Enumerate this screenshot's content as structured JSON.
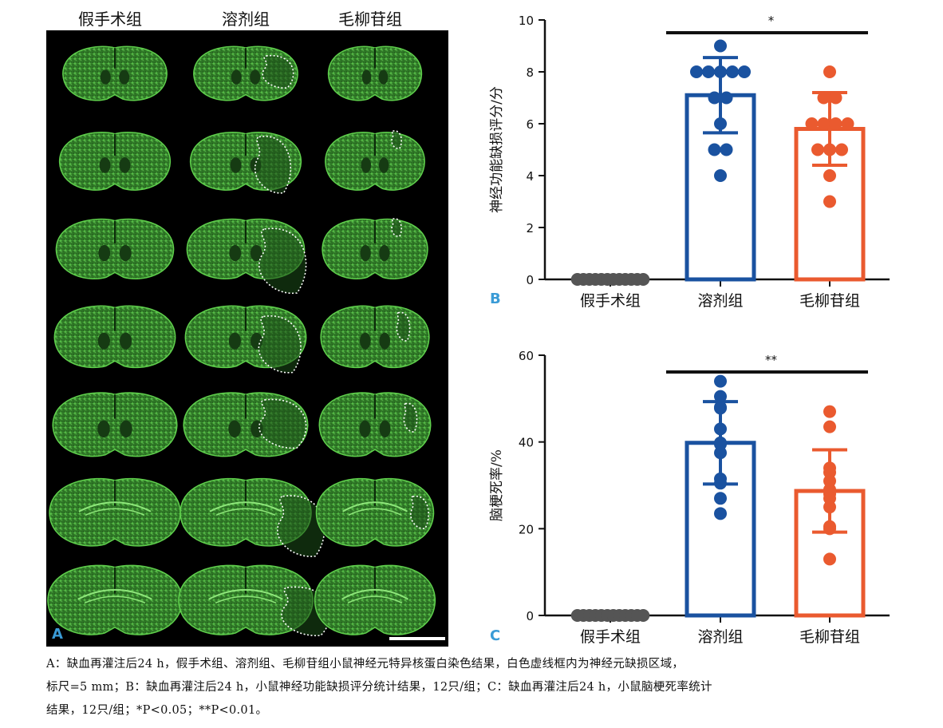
{
  "panel_a": {
    "columns": [
      "假手术组",
      "溶剂组",
      "毛柳苷组"
    ],
    "letter": "A",
    "rows": 7
  },
  "chart_data": [
    {
      "type": "bar",
      "panel": "B",
      "categories": [
        "假手术组",
        "溶剂组",
        "毛柳苷组"
      ],
      "values": [
        0,
        7.1,
        5.8
      ],
      "errors": [
        0,
        1.45,
        1.4
      ],
      "points": [
        [
          0,
          0,
          0,
          0,
          0,
          0,
          0,
          0,
          0,
          0,
          0,
          0
        ],
        [
          9,
          8,
          8,
          8,
          8,
          8,
          7,
          7,
          6,
          5,
          5,
          4
        ],
        [
          8,
          7,
          7,
          6,
          6,
          6,
          6,
          5,
          5,
          5,
          4,
          3
        ]
      ],
      "ylabel": "神经功能缺损评分/分",
      "ylim": [
        0,
        10
      ],
      "yticks": [
        0,
        2,
        4,
        6,
        8,
        10
      ],
      "significance": {
        "from": 1,
        "to": 2,
        "label": "*"
      },
      "colors": [
        "#555555",
        "#1a52a0",
        "#ea5a2f"
      ]
    },
    {
      "type": "bar",
      "panel": "C",
      "categories": [
        "假手术组",
        "溶剂组",
        "毛柳苷组"
      ],
      "values": [
        0,
        39.8,
        28.7
      ],
      "errors": [
        0,
        9.5,
        9.5
      ],
      "points": [
        [
          0,
          0,
          0,
          0,
          0,
          0,
          0,
          0,
          0,
          0,
          0,
          0
        ],
        [
          54,
          50.5,
          48,
          47.8,
          43,
          39.8,
          39.5,
          37.5,
          31.5,
          30.5,
          27,
          23.5
        ],
        [
          47,
          43.5,
          34,
          33,
          31,
          29,
          28,
          27,
          25,
          20.5,
          20,
          13
        ]
      ],
      "ylabel": "脑梗死率/%",
      "ylim": [
        0,
        60
      ],
      "yticks": [
        0,
        20,
        40,
        60
      ],
      "significance": {
        "from": 1,
        "to": 2,
        "label": "**"
      },
      "colors": [
        "#555555",
        "#1a52a0",
        "#ea5a2f"
      ]
    }
  ],
  "caption": {
    "line1": "A：缺血再灌注后24 h，假手术组、溶剂组、毛柳苷组小鼠神经元特异核蛋白染色结果，白色虚线框内为神经元缺损区域，",
    "line2": "标尺=5 mm；B：缺血再灌注后24 h，小鼠神经功能缺损评分统计结果，12只/组；C：缺血再灌注后24 h，小鼠脑梗死率统计",
    "line3": "结果，12只/组；*P<0.05；**P<0.01。"
  }
}
